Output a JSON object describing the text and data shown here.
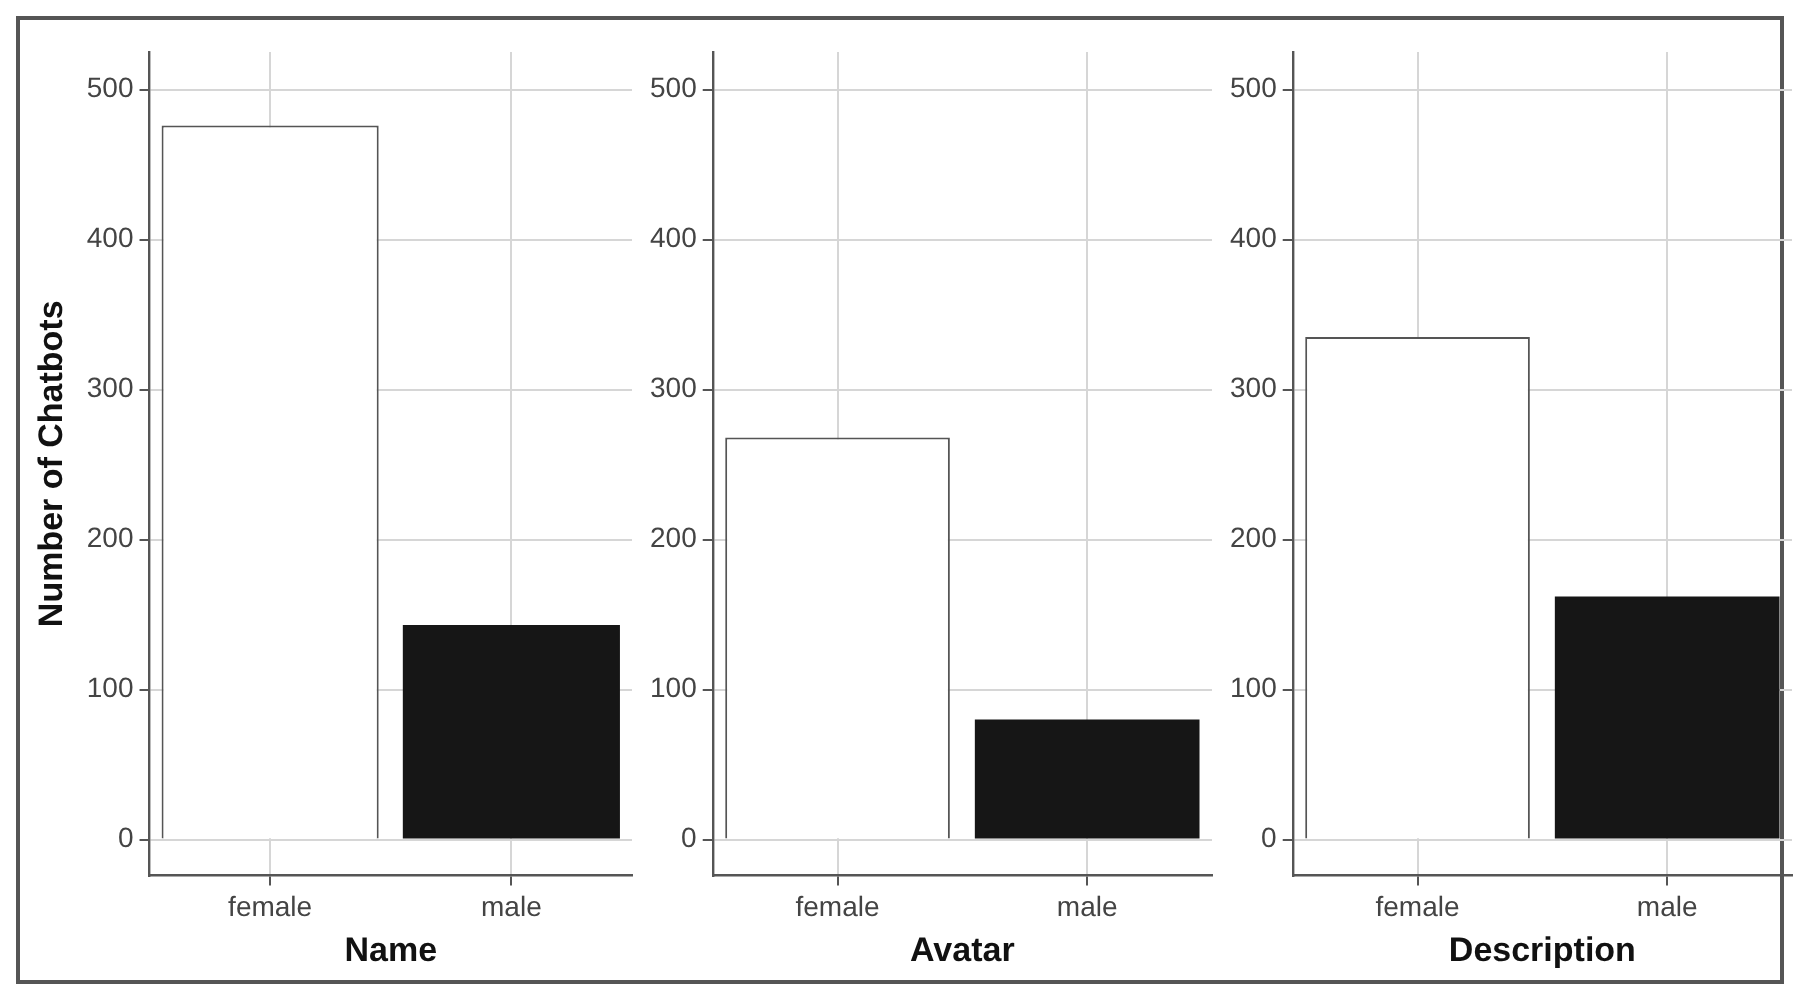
{
  "chart_data": [
    {
      "type": "bar",
      "xlabel": "Name",
      "ylabel": "Number of Chatbots",
      "categories": [
        "female",
        "male"
      ],
      "values": [
        476,
        143
      ],
      "colors": [
        "#ffffff",
        "#161616"
      ],
      "ylim": [
        -24,
        525
      ],
      "yticks": [
        0,
        100,
        200,
        300,
        400,
        500
      ],
      "grid": true
    },
    {
      "type": "bar",
      "xlabel": "Avatar",
      "categories": [
        "female",
        "male"
      ],
      "values": [
        268,
        80
      ],
      "colors": [
        "#ffffff",
        "#161616"
      ],
      "ylim": [
        -24,
        525
      ],
      "yticks": [
        0,
        100,
        200,
        300,
        400,
        500
      ],
      "grid": true
    },
    {
      "type": "bar",
      "xlabel": "Description",
      "categories": [
        "female",
        "male"
      ],
      "values": [
        335,
        162
      ],
      "colors": [
        "#ffffff",
        "#161616"
      ],
      "ylim": [
        -24,
        525
      ],
      "yticks": [
        0,
        100,
        200,
        300,
        400,
        500
      ],
      "grid": true
    }
  ]
}
